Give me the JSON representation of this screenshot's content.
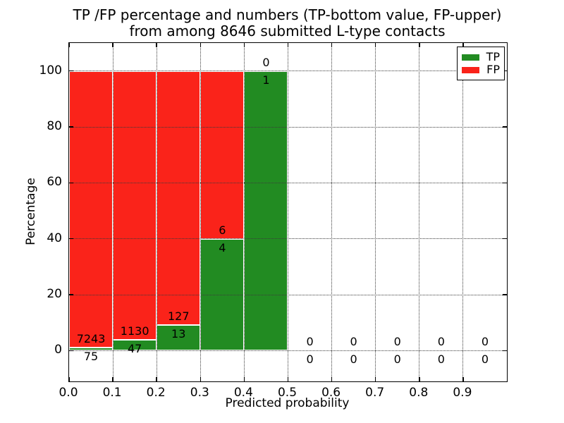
{
  "figure": {
    "title_line1": "TP /FP percentage and numbers (TP-bottom value, FP-upper)",
    "title_line2": "from among 8646 submitted L-type contacts"
  },
  "chart_data": {
    "type": "bar",
    "subtype": "stacked-percentage-histogram",
    "title": "TP /FP percentage and numbers (TP-bottom value, FP-upper)\nfrom among 8646 submitted L-type contacts",
    "total_submitted_contacts": 8646,
    "xlabel": "Predicted probability",
    "ylabel": "Percentage",
    "xlim": [
      0.0,
      1.0
    ],
    "ylim": [
      -11,
      110
    ],
    "grid": true,
    "grid_style": "dotted",
    "x_tick_values": [
      0.0,
      0.1,
      0.2,
      0.3,
      0.4,
      0.5,
      0.6,
      0.7,
      0.8,
      0.9
    ],
    "x_tick_labels": [
      "0.0",
      "0.1",
      "0.2",
      "0.3",
      "0.4",
      "0.5",
      "0.6",
      "0.7",
      "0.8",
      "0.9"
    ],
    "y_tick_values": [
      0,
      20,
      40,
      60,
      80,
      100
    ],
    "y_tick_labels": [
      "0",
      "20",
      "40",
      "60",
      "80",
      "100"
    ],
    "bin_edges": [
      0.0,
      0.1,
      0.2,
      0.3,
      0.4,
      0.5,
      0.6,
      0.7,
      0.8,
      0.9,
      1.0
    ],
    "series": [
      {
        "name": "TP",
        "position": "bottom",
        "color": "#228b22",
        "counts": [
          75,
          47,
          13,
          4,
          1,
          0,
          0,
          0,
          0,
          0
        ]
      },
      {
        "name": "FP",
        "position": "upper",
        "color": "#fa231a",
        "counts": [
          7243,
          1130,
          127,
          6,
          0,
          0,
          0,
          0,
          0,
          0
        ]
      }
    ],
    "tp_percent_of_bin": [
      1.025,
      3.993,
      9.286,
      40.0,
      100.0,
      0,
      0,
      0,
      0,
      0
    ],
    "legend": {
      "position": "upper right",
      "entries": [
        {
          "label": "TP",
          "color": "#228b22"
        },
        {
          "label": "FP",
          "color": "#fa231a"
        }
      ]
    }
  }
}
